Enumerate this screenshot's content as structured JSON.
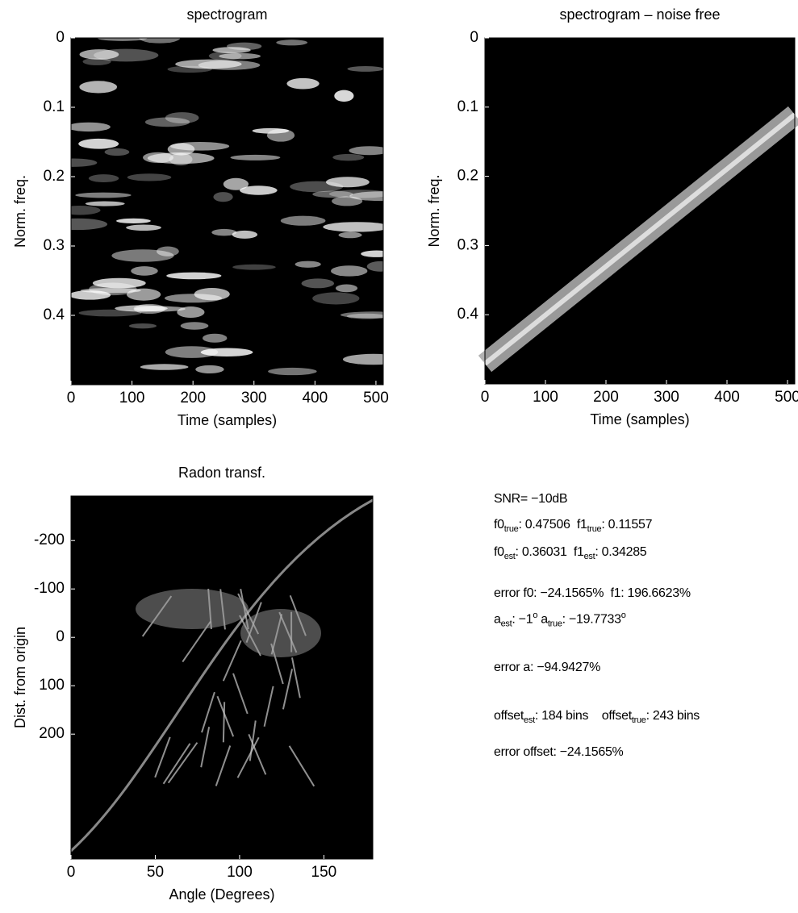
{
  "chart_data": [
    {
      "type": "heatmap",
      "title": "spectrogram",
      "xlabel": "Time (samples)",
      "ylabel": "Norm. freq.",
      "xlim": [
        0,
        512
      ],
      "xticks": [
        0,
        100,
        200,
        300,
        400,
        500
      ],
      "ylim": [
        0,
        0.5
      ],
      "yticks": [
        0,
        0.1,
        0.2,
        0.3,
        0.4
      ],
      "y_inverted": true,
      "colormap": "gray"
    },
    {
      "type": "heatmap",
      "title": "spectrogram – noise free",
      "xlabel": "Time (samples)",
      "ylabel": "Norm. freq.",
      "xlim": [
        0,
        512
      ],
      "xticks": [
        0,
        100,
        200,
        300,
        400,
        500
      ],
      "ylim": [
        0,
        0.5
      ],
      "yticks": [
        0,
        0.1,
        0.2,
        0.3,
        0.4
      ],
      "y_inverted": true,
      "colormap": "gray"
    },
    {
      "type": "heatmap",
      "title": "Radon transf.",
      "xlabel": "Angle (Degrees)",
      "ylabel": "Dist. from origin",
      "xlim": [
        0,
        179
      ],
      "xticks": [
        0,
        50,
        100,
        150
      ],
      "ylim": [
        -292,
        458
      ],
      "yticks": [
        -200,
        -100,
        0,
        100,
        200
      ],
      "y_inverted": true,
      "colormap": "gray"
    }
  ],
  "text_panel": {
    "lines": [
      [
        {
          "t": "SNR= −10dB"
        }
      ],
      [
        {
          "t": "f0"
        },
        {
          "sub": "true"
        },
        {
          "t": ": 0.47506  f1"
        },
        {
          "sub": "true"
        },
        {
          "t": ": 0.11557"
        }
      ],
      [
        {
          "t": "f0"
        },
        {
          "sub": "est"
        },
        {
          "t": ": 0.36031  f1"
        },
        {
          "sub": "est"
        },
        {
          "t": ": 0.34285"
        }
      ],
      [
        {
          "t": "error f0: −24.1565%  f1: 196.6623%"
        }
      ],
      [
        {
          "t": "a"
        },
        {
          "sub": "est"
        },
        {
          "t": ": −1"
        },
        {
          "sup": "o"
        },
        {
          "t": " a"
        },
        {
          "sub": "true"
        },
        {
          "t": ": −19.7733"
        },
        {
          "sup": "o"
        }
      ],
      [
        {
          "t": "error a: −94.9427%"
        }
      ],
      [
        {
          "t": "offset"
        },
        {
          "sub": "est"
        },
        {
          "t": ": 184 bins    offset"
        },
        {
          "sub": "true"
        },
        {
          "t": ": 243 bins"
        }
      ],
      [
        {
          "t": "error offset: −24.1565%"
        }
      ]
    ]
  }
}
